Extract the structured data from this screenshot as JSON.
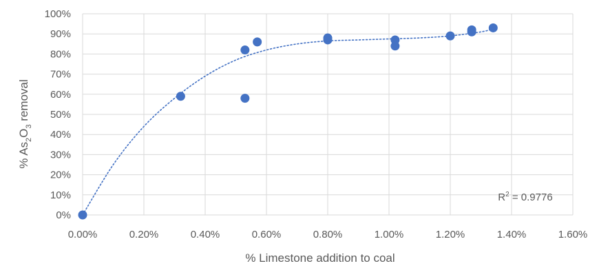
{
  "chart_data": {
    "type": "scatter",
    "title": "",
    "xlabel": "% Limestone addition to coal",
    "ylabel_parts": [
      "% As",
      "2",
      "O",
      "3",
      " removal"
    ],
    "xlim": [
      0,
      0.016
    ],
    "ylim": [
      0,
      1
    ],
    "x_ticks": [
      0,
      0.002,
      0.004,
      0.006,
      0.008,
      0.01,
      0.012,
      0.014,
      0.016
    ],
    "x_tick_labels": [
      "0.00%",
      "0.20%",
      "0.40%",
      "0.60%",
      "0.80%",
      "1.00%",
      "1.20%",
      "1.40%",
      "1.60%"
    ],
    "y_ticks": [
      0,
      0.1,
      0.2,
      0.3,
      0.4,
      0.5,
      0.6,
      0.7,
      0.8,
      0.9,
      1.0
    ],
    "y_tick_labels": [
      "0%",
      "10%",
      "20%",
      "30%",
      "40%",
      "50%",
      "60%",
      "70%",
      "80%",
      "90%",
      "100%"
    ],
    "grid": true,
    "legend": "none",
    "series": [
      {
        "marker_color": "#4472c4",
        "points": [
          {
            "x": 0.0,
            "y": 0.0
          },
          {
            "x": 0.0032,
            "y": 0.59
          },
          {
            "x": 0.0053,
            "y": 0.82
          },
          {
            "x": 0.0053,
            "y": 0.58
          },
          {
            "x": 0.0057,
            "y": 0.86
          },
          {
            "x": 0.008,
            "y": 0.88
          },
          {
            "x": 0.008,
            "y": 0.87
          },
          {
            "x": 0.0102,
            "y": 0.87
          },
          {
            "x": 0.0102,
            "y": 0.84
          },
          {
            "x": 0.012,
            "y": 0.89
          },
          {
            "x": 0.0127,
            "y": 0.91
          },
          {
            "x": 0.0127,
            "y": 0.92
          },
          {
            "x": 0.0134,
            "y": 0.93
          }
        ]
      }
    ],
    "trendline": {
      "style": "dotted",
      "color": "#4472c4",
      "points": [
        {
          "x": 0.0,
          "y": 0.0
        },
        {
          "x": 0.001,
          "y": 0.25
        },
        {
          "x": 0.002,
          "y": 0.44
        },
        {
          "x": 0.003,
          "y": 0.58
        },
        {
          "x": 0.004,
          "y": 0.69
        },
        {
          "x": 0.005,
          "y": 0.77
        },
        {
          "x": 0.006,
          "y": 0.82
        },
        {
          "x": 0.007,
          "y": 0.85
        },
        {
          "x": 0.008,
          "y": 0.865
        },
        {
          "x": 0.009,
          "y": 0.87
        },
        {
          "x": 0.01,
          "y": 0.875
        },
        {
          "x": 0.011,
          "y": 0.88
        },
        {
          "x": 0.012,
          "y": 0.89
        },
        {
          "x": 0.013,
          "y": 0.91
        },
        {
          "x": 0.0134,
          "y": 0.925
        }
      ]
    },
    "annotation": {
      "prefix": "R",
      "sup": "2",
      "rest": " = 0.9776",
      "position": "bottom-right"
    }
  }
}
